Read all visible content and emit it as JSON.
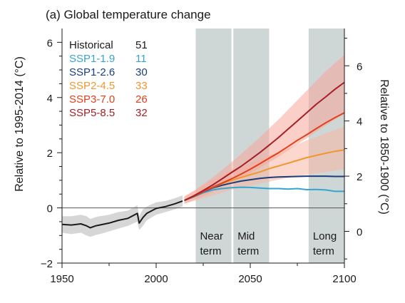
{
  "chart_data": {
    "type": "line",
    "title": "(a) Global temperature change",
    "xlabel": "",
    "ylabel_left": "Relative to 1995-2014 (°C)",
    "ylabel_right": "Relative to 1850-1900 (°C)",
    "xlim": [
      1950,
      2100
    ],
    "ylim_left": [
      -2,
      6.5
    ],
    "ylim_right": [
      -1.15,
      7.35
    ],
    "right_axis_offset": 0.85,
    "x_ticks": [
      1950,
      2000,
      2050,
      2100
    ],
    "x_tick_labels": [
      "1950",
      "2000",
      "2050",
      "2100"
    ],
    "y_left_ticks": [
      -2,
      0,
      2,
      4,
      6
    ],
    "y_left_tick_labels": [
      "−2",
      "0",
      "2",
      "4",
      "6"
    ],
    "y_right_ticks": [
      0,
      2,
      4,
      6
    ],
    "y_right_tick_labels": [
      "0",
      "2",
      "4",
      "6"
    ],
    "grid": false,
    "legend_position": "top-left",
    "zero_line": 0,
    "periods": [
      {
        "label_line1": "Near",
        "label_line2": "term",
        "x_start": 2021,
        "x_end": 2040
      },
      {
        "label_line1": "Mid",
        "label_line2": "term",
        "x_start": 2041,
        "x_end": 2060
      },
      {
        "label_line1": "Long",
        "label_line2": "term",
        "x_start": 2081,
        "x_end": 2100
      }
    ],
    "series": [
      {
        "name": "Historical",
        "count": "51",
        "color": "#1a1a1a",
        "band_color": "#b5b5b5",
        "x": [
          1950,
          1955,
          1960,
          1963,
          1965,
          1968,
          1970,
          1975,
          1980,
          1985,
          1990,
          1991,
          1993,
          1995,
          2000,
          2005,
          2010,
          2014
        ],
        "y": [
          -0.6,
          -0.62,
          -0.58,
          -0.65,
          -0.72,
          -0.65,
          -0.62,
          -0.55,
          -0.45,
          -0.38,
          -0.2,
          -0.55,
          -0.35,
          -0.2,
          -0.02,
          0.05,
          0.15,
          0.25
        ],
        "lower": [
          -0.9,
          -0.95,
          -0.9,
          -1.0,
          -1.05,
          -0.98,
          -0.95,
          -0.85,
          -0.75,
          -0.65,
          -0.5,
          -0.8,
          -0.65,
          -0.45,
          -0.25,
          -0.15,
          -0.05,
          0.05
        ],
        "upper": [
          -0.3,
          -0.3,
          -0.25,
          -0.3,
          -0.4,
          -0.33,
          -0.3,
          -0.25,
          -0.15,
          -0.1,
          0.1,
          -0.3,
          -0.05,
          0.05,
          0.2,
          0.25,
          0.35,
          0.45
        ]
      },
      {
        "name": "SSP1-1.9",
        "count": "11",
        "color": "#34a5d1",
        "x": [
          2015,
          2020,
          2025,
          2030,
          2035,
          2040,
          2045,
          2050,
          2055,
          2060,
          2065,
          2070,
          2075,
          2080,
          2085,
          2090,
          2095,
          2100
        ],
        "y": [
          0.27,
          0.4,
          0.55,
          0.65,
          0.7,
          0.73,
          0.75,
          0.74,
          0.72,
          0.7,
          0.7,
          0.68,
          0.7,
          0.66,
          0.67,
          0.65,
          0.6,
          0.6
        ]
      },
      {
        "name": "SSP1-2.6",
        "count": "30",
        "color": "#1b3d7a",
        "x": [
          2015,
          2020,
          2025,
          2030,
          2035,
          2040,
          2045,
          2050,
          2055,
          2060,
          2065,
          2070,
          2075,
          2080,
          2085,
          2090,
          2095,
          2100
        ],
        "y": [
          0.27,
          0.42,
          0.58,
          0.72,
          0.82,
          0.9,
          0.97,
          1.02,
          1.07,
          1.1,
          1.12,
          1.13,
          1.14,
          1.15,
          1.15,
          1.15,
          1.14,
          1.14
        ]
      },
      {
        "name": "SSP2-4.5",
        "count": "33",
        "color": "#f2962e",
        "band_color": "#f8b6a4",
        "x": [
          2015,
          2020,
          2025,
          2030,
          2035,
          2040,
          2045,
          2050,
          2055,
          2060,
          2065,
          2070,
          2075,
          2080,
          2085,
          2090,
          2095,
          2100
        ],
        "y": [
          0.27,
          0.43,
          0.6,
          0.74,
          0.88,
          1.0,
          1.1,
          1.2,
          1.3,
          1.42,
          1.52,
          1.62,
          1.72,
          1.82,
          1.9,
          1.98,
          2.05,
          2.1
        ],
        "lower": [
          0.15,
          0.25,
          0.35,
          0.45,
          0.55,
          0.65,
          0.72,
          0.8,
          0.88,
          0.95,
          1.02,
          1.08,
          1.15,
          1.2,
          1.25,
          1.3,
          1.35,
          1.4
        ],
        "upper": [
          0.4,
          0.6,
          0.82,
          1.02,
          1.2,
          1.38,
          1.5,
          1.62,
          1.75,
          1.9,
          2.02,
          2.15,
          2.3,
          2.45,
          2.57,
          2.7,
          2.82,
          2.95
        ]
      },
      {
        "name": "SSP3-7.0",
        "count": "26",
        "color": "#e2401b",
        "x": [
          2015,
          2020,
          2025,
          2030,
          2035,
          2040,
          2045,
          2050,
          2055,
          2060,
          2065,
          2070,
          2075,
          2080,
          2085,
          2090,
          2095,
          2100
        ],
        "y": [
          0.27,
          0.42,
          0.58,
          0.75,
          0.9,
          1.05,
          1.22,
          1.4,
          1.6,
          1.8,
          2.0,
          2.22,
          2.45,
          2.65,
          2.87,
          3.08,
          3.27,
          3.45
        ]
      },
      {
        "name": "SSP5-8.5",
        "count": "32",
        "color": "#a51f24",
        "band_color": "#f8a79b",
        "x": [
          2015,
          2020,
          2025,
          2030,
          2035,
          2040,
          2045,
          2050,
          2055,
          2060,
          2065,
          2070,
          2075,
          2080,
          2085,
          2090,
          2095,
          2100
        ],
        "y": [
          0.27,
          0.44,
          0.63,
          0.83,
          1.05,
          1.28,
          1.5,
          1.75,
          2.0,
          2.27,
          2.55,
          2.85,
          3.15,
          3.45,
          3.75,
          4.02,
          4.3,
          4.55
        ],
        "lower": [
          0.15,
          0.28,
          0.42,
          0.58,
          0.75,
          0.92,
          1.08,
          1.25,
          1.45,
          1.65,
          1.85,
          2.08,
          2.3,
          2.52,
          2.75,
          2.98,
          3.2,
          3.4
        ],
        "upper": [
          0.42,
          0.62,
          0.85,
          1.1,
          1.38,
          1.65,
          1.95,
          2.25,
          2.55,
          2.88,
          3.2,
          3.55,
          3.9,
          4.25,
          4.6,
          4.95,
          5.25,
          5.55
        ]
      }
    ]
  }
}
